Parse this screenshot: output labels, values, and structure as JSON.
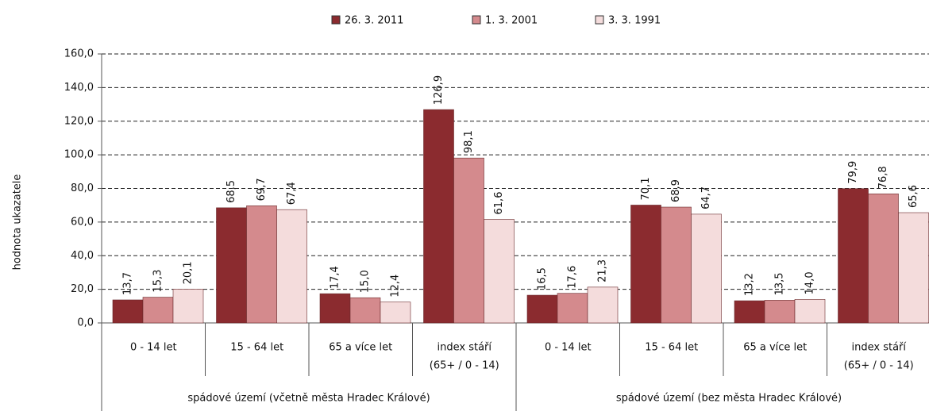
{
  "chart_data": {
    "type": "bar",
    "y_label": "hodnota ukazatele",
    "categories": [
      "0 - 14 let",
      "15 - 64 let",
      "65 a více let",
      [
        "index stáří",
        "(65+ / 0 - 14)"
      ],
      "0 - 14 let",
      "15 - 64 let",
      "65 a více let",
      [
        "index stáří",
        "(65+ / 0 - 14)"
      ]
    ],
    "groups": [
      {
        "label": "spádové území (včetně města Hradec Králové)",
        "span": 4
      },
      {
        "label": "spádové území (bez města Hradec Králové)",
        "span": 4
      }
    ],
    "series": [
      {
        "name": "26. 3. 2011",
        "color": "#8b2b2f",
        "values": [
          13.7,
          68.5,
          17.4,
          126.9,
          16.5,
          70.1,
          13.2,
          79.9
        ],
        "value_labels": [
          "13,7",
          "68,5",
          "17,4",
          "126,9",
          "16,5",
          "70,1",
          "13,2",
          "79,9"
        ]
      },
      {
        "name": "1. 3. 2001",
        "color": "#d48a8d",
        "values": [
          15.3,
          69.7,
          15.0,
          98.1,
          17.6,
          68.9,
          13.5,
          76.8
        ],
        "value_labels": [
          "15,3",
          "69,7",
          "15,0",
          "98,1",
          "17,6",
          "68,9",
          "13,5",
          "76,8"
        ]
      },
      {
        "name": "3. 3. 1991",
        "color": "#f4dcdc",
        "values": [
          20.1,
          67.4,
          12.4,
          61.6,
          21.3,
          64.7,
          14.0,
          65.6
        ],
        "value_labels": [
          "20,1",
          "67,4",
          "12,4",
          "61,6",
          "21,3",
          "64,7",
          "14,0",
          "65,6"
        ]
      }
    ],
    "ylim": [
      0,
      160
    ],
    "yticks": [
      {
        "value": 0,
        "label": "0,0"
      },
      {
        "value": 20,
        "label": "20,0"
      },
      {
        "value": 40,
        "label": "40,0"
      },
      {
        "value": 60,
        "label": "60,0"
      },
      {
        "value": 80,
        "label": "80,0"
      },
      {
        "value": 100,
        "label": "100,0"
      },
      {
        "value": 120,
        "label": "120,0"
      },
      {
        "value": 140,
        "label": "140,0"
      },
      {
        "value": 160,
        "label": "160,0"
      }
    ],
    "grid": true,
    "legend": "top"
  }
}
